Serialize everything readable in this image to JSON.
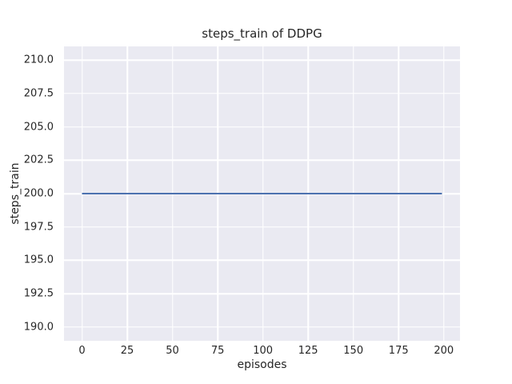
{
  "colors": {
    "figure_bg": "#ffffff",
    "axes_bg": "#eaeaf2",
    "grid": "#ffffff",
    "line": "#4c72b0",
    "text": "#262626"
  },
  "chart_data": {
    "type": "line",
    "title": "steps_train of DDPG",
    "xlabel": "episodes",
    "ylabel": "steps_train",
    "series": [
      {
        "name": "steps_train",
        "color": "#4c72b0",
        "x": [
          0,
          199
        ],
        "y": [
          200,
          200
        ]
      }
    ],
    "xlim": [
      -9.95,
      208.95
    ],
    "ylim": [
      188.97,
      211.03
    ],
    "xticks": [
      0,
      25,
      50,
      75,
      100,
      125,
      150,
      175,
      200
    ],
    "xtick_labels": [
      "0",
      "25",
      "50",
      "75",
      "100",
      "125",
      "150",
      "175",
      "200"
    ],
    "yticks": [
      190.0,
      192.5,
      195.0,
      197.5,
      200.0,
      202.5,
      205.0,
      207.5,
      210.0
    ],
    "ytick_labels": [
      "190.0",
      "192.5",
      "195.0",
      "197.5",
      "200.0",
      "202.5",
      "205.0",
      "207.5",
      "210.0"
    ],
    "grid": true,
    "legend": false
  }
}
